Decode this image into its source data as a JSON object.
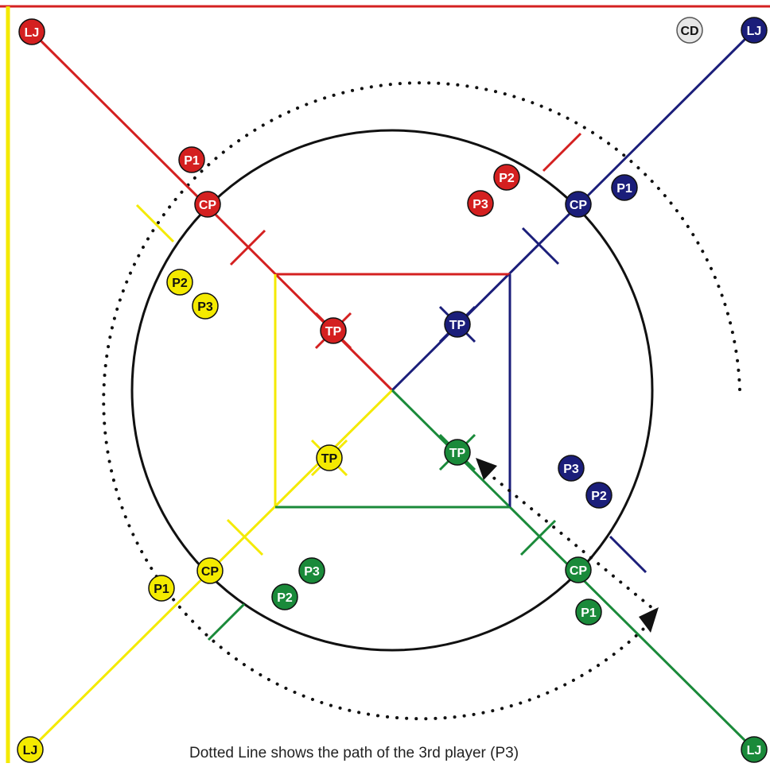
{
  "caption": "Dotted Line shows the path of the 3rd player (P3)",
  "colors": {
    "red": "#d42020",
    "navy": "#1b1e7a",
    "green": "#1a8a3a",
    "yellow": "#f4ea00",
    "grey": "#e6e6e6",
    "black": "#111111"
  },
  "teams": {
    "red": {
      "lj": "LJ",
      "cp": "CP",
      "tp": "TP",
      "p1": "P1",
      "p2": "P2",
      "p3": "P3"
    },
    "navy": {
      "lj": "LJ",
      "cp": "CP",
      "tp": "TP",
      "p1": "P1",
      "p2": "P2",
      "p3": "P3"
    },
    "yellow": {
      "lj": "LJ",
      "cp": "CP",
      "tp": "TP",
      "p1": "P1",
      "p2": "P2",
      "p3": "P3"
    },
    "green": {
      "lj": "LJ",
      "cp": "CP",
      "tp": "TP",
      "p1": "P1",
      "p2": "P2",
      "p3": "P3"
    }
  },
  "judge": {
    "label": "CD"
  }
}
